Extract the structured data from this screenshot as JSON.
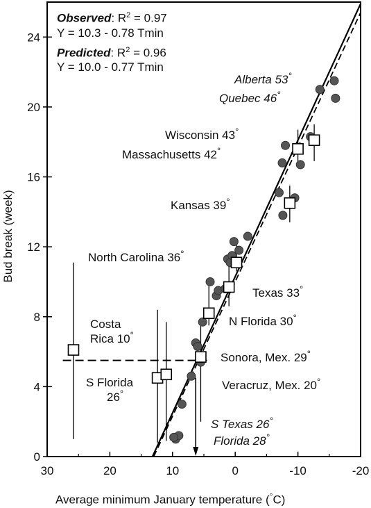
{
  "stats": {
    "observed_label": "Observed",
    "observed_r2_prefix": ": R",
    "observed_r2_value": " = 0.97",
    "observed_eq": "Y = 10.3 - 0.78 Tmin",
    "predicted_label": "Predicted",
    "predicted_r2_prefix": ": R",
    "predicted_r2_value": " = 0.96",
    "predicted_eq": "Y = 10.0 - 0.77 Tmin",
    "sq": "2"
  },
  "location_labels": {
    "alberta": "Alberta 53",
    "quebec": "Quebec 46",
    "wisconsin": "Wisconsin 43",
    "massachusetts": "Massachusetts 42",
    "kansas": "Kansas 39",
    "north_carolina": "North Carolina 36",
    "texas": "Texas 33",
    "n_florida": "N Florida 30",
    "costa_rica_1": "Costa",
    "costa_rica_2": "Rica 10",
    "sonora": "Sonora, Mex. 29",
    "s_florida_1": "S Florida",
    "s_florida_2": "26",
    "veracruz": "Veracruz, Mex. 20",
    "s_texas": "S Texas 26",
    "florida": "Florida 28",
    "degree": "°"
  },
  "axes": {
    "ylabel": "Bud break (week)",
    "xlabel_prefix": "Average minimum January temperature (",
    "xlabel_unit": "°C)"
  },
  "chart_data": {
    "type": "scatter",
    "xlabel": "Average minimum January temperature (°C)",
    "ylabel": "Bud break (week)",
    "xlim": [
      30,
      -20
    ],
    "ylim": [
      0,
      26
    ],
    "x_reversed": true,
    "x_ticks": [
      30,
      20,
      10,
      0,
      -10,
      -20
    ],
    "y_ticks": [
      0,
      4,
      8,
      12,
      16,
      20,
      24
    ],
    "grid": false,
    "series": [
      {
        "marker": "filled-circle",
        "x": [
          9.5,
          9.0,
          9.8,
          8.5,
          7.0,
          6.3,
          6.0,
          5.5,
          5.2,
          4.0,
          3.0,
          2.7,
          1.6,
          1.2,
          0.8,
          0.5,
          0.2,
          -0.6,
          -2.0,
          -7.6,
          -7.0,
          -9.5,
          -7.5,
          -8.0,
          -10.4,
          -12.0,
          -13.5,
          -15.8,
          -16.0
        ],
        "y": [
          1.0,
          1.2,
          1.1,
          3.0,
          4.6,
          6.5,
          6.3,
          5.4,
          7.7,
          10.0,
          9.2,
          9.5,
          9.6,
          11.3,
          11.1,
          11.5,
          12.3,
          11.8,
          12.6,
          13.8,
          15.1,
          14.8,
          16.8,
          17.8,
          16.7,
          18.3,
          21.0,
          21.5,
          20.5
        ]
      },
      {
        "marker": "open-square",
        "x": [
          25.8,
          12.4,
          11.0,
          5.5,
          4.2,
          1.0,
          -0.2,
          -8.7,
          -10.0,
          -12.6
        ],
        "y": [
          6.1,
          4.5,
          4.7,
          5.7,
          8.2,
          9.7,
          11.1,
          14.5,
          17.6,
          18.1
        ],
        "error_high": [
          11.1,
          8.4,
          7.7,
          7.5,
          9.8,
          11.0,
          12.1,
          15.5,
          18.7,
          19.0
        ],
        "error_low": [
          1.0,
          0.8,
          0.9,
          2.0,
          7.5,
          8.6,
          10.6,
          13.4,
          16.5,
          16.9
        ]
      },
      {
        "name": "Observed",
        "style": "solid",
        "x": [
          13.2,
          -20.0
        ],
        "y": [
          0.0,
          25.9
        ]
      },
      {
        "name": "Predicted",
        "style": "dashed",
        "x": [
          13.0,
          -20.0
        ],
        "y": [
          0.0,
          25.4
        ]
      },
      {
        "style": "dashed-horizontal",
        "x": [
          27.5,
          4.5
        ],
        "y": [
          5.5,
          5.5
        ]
      }
    ],
    "annotations": [
      {
        "text": "Alberta 53°",
        "italic": true
      },
      {
        "text": "Quebec 46°",
        "italic": true
      },
      {
        "text": "Wisconsin 43°"
      },
      {
        "text": "Massachusetts 42°"
      },
      {
        "text": "Kansas 39°"
      },
      {
        "text": "North Carolina 36°"
      },
      {
        "text": "Texas 33°"
      },
      {
        "text": "N Florida 30°"
      },
      {
        "text": "Costa Rica 10°"
      },
      {
        "text": "Sonora, Mex. 29°"
      },
      {
        "text": "S Florida 26°"
      },
      {
        "text": "Veracruz, Mex. 20°"
      },
      {
        "text": "S Texas 26°",
        "italic": true
      },
      {
        "text": "Florida 28°",
        "italic": true
      }
    ],
    "arrow_x": 6.3
  }
}
